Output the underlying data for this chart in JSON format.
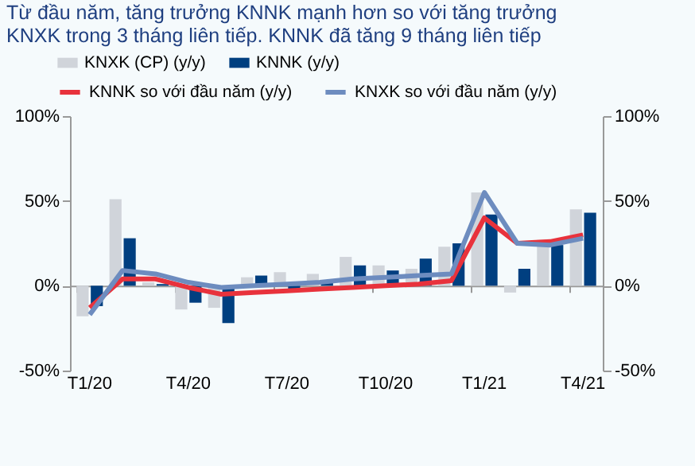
{
  "chart_data": {
    "type": "bar",
    "title": [
      "Từ đầu năm, tăng trưởng KNNK mạnh hơn so với tăng trưởng",
      "KNXK trong 3 tháng liên tiếp. KNNK đã tăng 9 tháng liên tiếp"
    ],
    "categories": [
      "T1/20",
      null,
      null,
      "T4/20",
      null,
      null,
      "T7/20",
      null,
      null,
      "T10/20",
      null,
      null,
      "T1/21",
      null,
      null,
      "T4/21"
    ],
    "series": [
      {
        "name": "KNXK (CP) (y/y)",
        "color": "#d0d4da",
        "values": [
          -18,
          51,
          2,
          -14,
          -13,
          5,
          8,
          7,
          17,
          12,
          10,
          23,
          55,
          -4,
          27,
          45
        ]
      },
      {
        "name": "KNNK (y/y)",
        "color": "#003f80",
        "values": [
          -12,
          28,
          1,
          -10,
          -22,
          6,
          -2,
          2,
          12,
          9,
          16,
          25,
          42,
          10,
          24,
          43
        ]
      },
      {
        "name": "KNNK so với đầu năm (y/y)",
        "type": "line",
        "color": "#e8323c",
        "values": [
          -13,
          4,
          4,
          -1,
          -5,
          -4,
          -3,
          -2,
          -1,
          0,
          1,
          3,
          40,
          25,
          26,
          30
        ]
      },
      {
        "name": "KNXK so với đầu năm (y/y)",
        "type": "line",
        "color": "#6d8cbf",
        "values": [
          -17,
          9,
          7,
          2,
          -1,
          0,
          1,
          2,
          4,
          5,
          6,
          7,
          55,
          25,
          24,
          28
        ]
      }
    ],
    "ylim": [
      -50,
      100
    ],
    "yticks": [
      {
        "value": -50,
        "label": "-50%"
      },
      {
        "value": 0,
        "label": "0%"
      },
      {
        "value": 50,
        "label": "50%"
      },
      {
        "value": 100,
        "label": "100%"
      }
    ],
    "y2lim": [
      -50,
      100
    ],
    "y2ticks": [
      {
        "value": -50,
        "label": "-50%"
      },
      {
        "value": 0,
        "label": "0%"
      },
      {
        "value": 50,
        "label": "50%"
      },
      {
        "value": 100,
        "label": "100%"
      }
    ],
    "legend": "top"
  }
}
